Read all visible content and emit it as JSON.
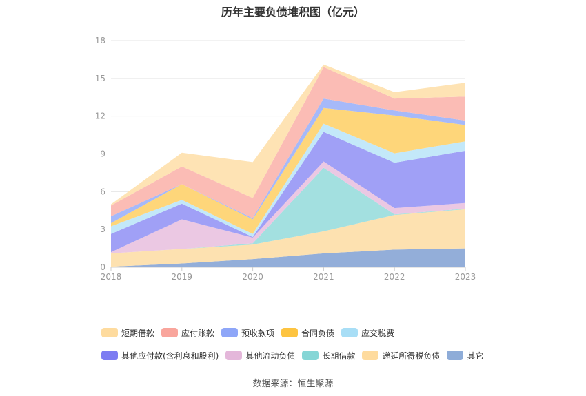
{
  "chart_data": {
    "type": "area",
    "stacked": true,
    "title": "历年主要负债堆积图（亿元）",
    "source": "数据来源：恒生聚源",
    "x": [
      "2018",
      "2019",
      "2020",
      "2021",
      "2022",
      "2023"
    ],
    "ylim": [
      0,
      18
    ],
    "yticks": [
      0,
      3,
      6,
      9,
      12,
      15,
      18
    ],
    "grid": true,
    "legend_position": "bottom",
    "series": [
      {
        "name": "其它",
        "color": "#93aed9",
        "values": [
          0.05,
          0.3,
          0.65,
          1.1,
          1.4,
          1.5
        ]
      },
      {
        "name": "递延所得税负债",
        "color": "#fde1b0",
        "values": [
          1.05,
          1.15,
          1.15,
          1.75,
          2.75,
          3.1
        ]
      },
      {
        "name": "长期借款",
        "color": "#a3e0e0",
        "values": [
          0.0,
          0.0,
          0.1,
          5.05,
          0.05,
          0.05
        ]
      },
      {
        "name": "其他流动负债",
        "color": "#ebc8e3",
        "values": [
          0.1,
          2.35,
          0.45,
          0.5,
          0.5,
          0.45
        ]
      },
      {
        "name": "其他应付款(含利息和股利)",
        "color": "#a0a0f6",
        "values": [
          1.45,
          1.25,
          0.05,
          2.35,
          3.6,
          4.15
        ]
      },
      {
        "name": "应交税费",
        "color": "#c3e8f9",
        "values": [
          0.6,
          0.3,
          0.25,
          0.65,
          0.75,
          0.75
        ]
      },
      {
        "name": "合同负债",
        "color": "#fed67a",
        "values": [
          0.25,
          1.25,
          1.15,
          1.25,
          3.0,
          1.3
        ]
      },
      {
        "name": "预收款项",
        "color": "#a6b9f9",
        "values": [
          0.55,
          0.0,
          0.1,
          0.75,
          0.4,
          0.35
        ]
      },
      {
        "name": "应付账款",
        "color": "#fbbcb5",
        "values": [
          0.85,
          1.4,
          1.6,
          2.5,
          0.95,
          1.9
        ]
      },
      {
        "name": "短期借款",
        "color": "#fee3b4",
        "values": [
          0.1,
          1.1,
          2.85,
          0.2,
          0.5,
          1.1
        ]
      }
    ],
    "legend": [
      [
        {
          "name": "短期借款",
          "color": "#fedb9e"
        },
        {
          "name": "应付账款",
          "color": "#f9a59c"
        },
        {
          "name": "预收款项",
          "color": "#8ea6f8"
        },
        {
          "name": "合同负债",
          "color": "#fdc441"
        },
        {
          "name": "应交税费",
          "color": "#a8def6"
        }
      ],
      [
        {
          "name": "其他应付款(含利息和股利)",
          "color": "#7d7cf2"
        },
        {
          "name": "其他流动负债",
          "color": "#e4b7da"
        },
        {
          "name": "长期借款",
          "color": "#86d6d6"
        },
        {
          "name": "递延所得税负债",
          "color": "#fedb9e"
        },
        {
          "name": "其它",
          "color": "#8eacd8"
        }
      ]
    ]
  }
}
